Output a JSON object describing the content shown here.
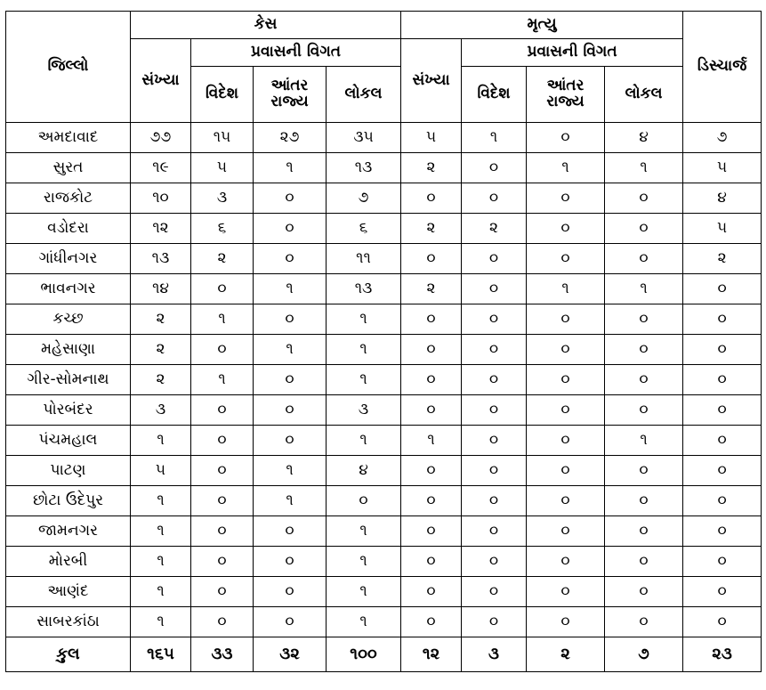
{
  "headers": {
    "district": "જિલ્લો",
    "cases": "કેસ",
    "deaths": "મૃત્યુ",
    "discharge": "ડિસ્ચાર્જ",
    "count": "સંખ્યા",
    "travel_details": "પ્રવાસની વિગત",
    "foreign": "વિદેશ",
    "interstate": "આંતર રાજ્ય",
    "local": "લોકલ"
  },
  "rows": [
    {
      "district": "અમદાવાદ",
      "c_count": "૭૭",
      "c_foreign": "૧૫",
      "c_inter": "૨૭",
      "c_local": "૩૫",
      "d_count": "૫",
      "d_foreign": "૧",
      "d_inter": "૦",
      "d_local": "૪",
      "discharge": "૭"
    },
    {
      "district": "સુરત",
      "c_count": "૧૯",
      "c_foreign": "૫",
      "c_inter": "૧",
      "c_local": "૧૩",
      "d_count": "૨",
      "d_foreign": "૦",
      "d_inter": "૧",
      "d_local": "૧",
      "discharge": "૫"
    },
    {
      "district": "રાજકોટ",
      "c_count": "૧૦",
      "c_foreign": "૩",
      "c_inter": "૦",
      "c_local": "૭",
      "d_count": "૦",
      "d_foreign": "૦",
      "d_inter": "૦",
      "d_local": "૦",
      "discharge": "૪"
    },
    {
      "district": "વડોદરા",
      "c_count": "૧૨",
      "c_foreign": "૬",
      "c_inter": "૦",
      "c_local": "૬",
      "d_count": "૨",
      "d_foreign": "૨",
      "d_inter": "૦",
      "d_local": "૦",
      "discharge": "૫"
    },
    {
      "district": "ગાંધીનગર",
      "c_count": "૧૩",
      "c_foreign": "૨",
      "c_inter": "૦",
      "c_local": "૧૧",
      "d_count": "૦",
      "d_foreign": "૦",
      "d_inter": "૦",
      "d_local": "૦",
      "discharge": "૨"
    },
    {
      "district": "ભાવનગર",
      "c_count": "૧૪",
      "c_foreign": "૦",
      "c_inter": "૧",
      "c_local": "૧૩",
      "d_count": "૨",
      "d_foreign": "૦",
      "d_inter": "૧",
      "d_local": "૧",
      "discharge": "૦"
    },
    {
      "district": "કચ્છ",
      "c_count": "૨",
      "c_foreign": "૧",
      "c_inter": "૦",
      "c_local": "૧",
      "d_count": "૦",
      "d_foreign": "૦",
      "d_inter": "૦",
      "d_local": "૦",
      "discharge": "૦"
    },
    {
      "district": "મહેસાણા",
      "c_count": "૨",
      "c_foreign": "૦",
      "c_inter": "૧",
      "c_local": "૧",
      "d_count": "૦",
      "d_foreign": "૦",
      "d_inter": "૦",
      "d_local": "૦",
      "discharge": "૦"
    },
    {
      "district": "ગીર-સોમનાથ",
      "c_count": "૨",
      "c_foreign": "૧",
      "c_inter": "૦",
      "c_local": "૧",
      "d_count": "૦",
      "d_foreign": "૦",
      "d_inter": "૦",
      "d_local": "૦",
      "discharge": "૦"
    },
    {
      "district": "પોરબંદર",
      "c_count": "૩",
      "c_foreign": "૦",
      "c_inter": "૦",
      "c_local": "૩",
      "d_count": "૦",
      "d_foreign": "૦",
      "d_inter": "૦",
      "d_local": "૦",
      "discharge": "૦"
    },
    {
      "district": "પંચમહાલ",
      "c_count": "૧",
      "c_foreign": "૦",
      "c_inter": "૦",
      "c_local": "૧",
      "d_count": "૧",
      "d_foreign": "૦",
      "d_inter": "૦",
      "d_local": "૧",
      "discharge": "૦"
    },
    {
      "district": "પાટણ",
      "c_count": "૫",
      "c_foreign": "૦",
      "c_inter": "૧",
      "c_local": "૪",
      "d_count": "૦",
      "d_foreign": "૦",
      "d_inter": "૦",
      "d_local": "૦",
      "discharge": "૦"
    },
    {
      "district": "છોટા ઉદેપુર",
      "c_count": "૧",
      "c_foreign": "૦",
      "c_inter": "૧",
      "c_local": "૦",
      "d_count": "૦",
      "d_foreign": "૦",
      "d_inter": "૦",
      "d_local": "૦",
      "discharge": "૦"
    },
    {
      "district": "જામનગર",
      "c_count": "૧",
      "c_foreign": "૦",
      "c_inter": "૦",
      "c_local": "૧",
      "d_count": "૦",
      "d_foreign": "૦",
      "d_inter": "૦",
      "d_local": "૦",
      "discharge": "૦"
    },
    {
      "district": "મોરબી",
      "c_count": "૧",
      "c_foreign": "૦",
      "c_inter": "૦",
      "c_local": "૧",
      "d_count": "૦",
      "d_foreign": "૦",
      "d_inter": "૦",
      "d_local": "૦",
      "discharge": "૦"
    },
    {
      "district": "આણંદ",
      "c_count": "૧",
      "c_foreign": "૦",
      "c_inter": "૦",
      "c_local": "૧",
      "d_count": "૦",
      "d_foreign": "૦",
      "d_inter": "૦",
      "d_local": "૦",
      "discharge": "૦"
    },
    {
      "district": "સાબરકાંઠા",
      "c_count": "૧",
      "c_foreign": "૦",
      "c_inter": "૦",
      "c_local": "૧",
      "d_count": "૦",
      "d_foreign": "૦",
      "d_inter": "૦",
      "d_local": "૦",
      "discharge": "૦"
    }
  ],
  "total": {
    "label": "કુલ",
    "c_count": "૧૬૫",
    "c_foreign": "૩૩",
    "c_inter": "૩૨",
    "c_local": "૧૦૦",
    "d_count": "૧૨",
    "d_foreign": "૩",
    "d_inter": "૨",
    "d_local": "૭",
    "discharge": "૨૩"
  }
}
